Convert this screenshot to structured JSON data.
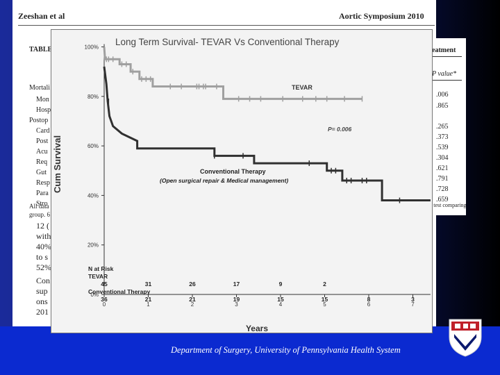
{
  "paper": {
    "author": "Zeeshan et al",
    "header_right": "Aortic Symposium 2010",
    "table_tag": "TABLE",
    "left_rows": [
      "Mortali",
      "Mon",
      "Hosp",
      "Postop",
      "Card",
      "Post",
      "Acu",
      "Req",
      "Gut",
      "Resp",
      "Para",
      "Stro"
    ],
    "body_lines": [
      "All data",
      "group. 6",
      "12 (",
      "with",
      "40%",
      "to s",
      "52%",
      "Con",
      "sup",
      "ons",
      "201"
    ],
    "treatment_label": "eatment",
    "pvalue_header": "P value*",
    "pvalues": [
      ".006",
      ".865",
      ".265",
      ".373",
      ".539",
      ".304",
      ".621",
      ".791",
      ".728",
      ".659"
    ],
    "footnote": "t test comparing"
  },
  "chart": {
    "title": "Long Term Survival- TEVAR Vs Conventional Therapy",
    "ylabel": "Cum Survival",
    "xlabel": "Years",
    "yticks": [
      "0%",
      "20%",
      "40%",
      "60%",
      "80%",
      "100%"
    ],
    "xticks": [
      "0",
      "1",
      "2",
      "3",
      "4",
      "5",
      "6",
      "7"
    ],
    "tevar_label": "TEVAR",
    "pvalue": "P= 0.006",
    "conv_label": "Conventional Therapy",
    "conv_sublabel": "(Open surgical repair & Medical management)",
    "risk_title": "N at Risk",
    "risk_tevar_label": "TEVAR",
    "risk_conv_label": "Conventional Therapy",
    "risk_tevar": [
      "45",
      "31",
      "26",
      "17",
      "9",
      "2"
    ],
    "risk_conv": [
      "36",
      "21",
      "21",
      "19",
      "15",
      "15",
      "8",
      "3"
    ]
  },
  "footer": {
    "text": "Department of Surgery, University of Pennsylvania Health System"
  },
  "colors": {
    "background": "#0a1a8c",
    "bottom_band": "#0b2ad0",
    "tevar_line": "#a0a0a0",
    "conv_line": "#303030",
    "chart_bg": "#f3f3f3",
    "logo_red": "#c0202a"
  },
  "chart_data": {
    "type": "line",
    "title": "Long Term Survival- TEVAR Vs Conventional Therapy",
    "xlabel": "Years",
    "ylabel": "Cum Survival",
    "xlim": [
      0,
      7.4
    ],
    "ylim": [
      0,
      100
    ],
    "x_ticks": [
      0,
      1,
      2,
      3,
      4,
      5,
      6,
      7
    ],
    "y_ticks": [
      0,
      20,
      40,
      60,
      80,
      100
    ],
    "grid": false,
    "series": [
      {
        "name": "TEVAR",
        "step_points": [
          [
            0,
            100
          ],
          [
            0.02,
            95
          ],
          [
            0.35,
            95
          ],
          [
            0.35,
            93
          ],
          [
            0.6,
            93
          ],
          [
            0.6,
            90
          ],
          [
            0.8,
            90
          ],
          [
            0.8,
            87
          ],
          [
            1.1,
            87
          ],
          [
            1.1,
            84
          ],
          [
            2.7,
            84
          ],
          [
            2.7,
            79
          ],
          [
            5.85,
            79
          ]
        ],
        "censor_x": [
          0.05,
          0.1,
          0.2,
          0.4,
          0.5,
          0.65,
          0.85,
          0.95,
          1.05,
          1.5,
          1.75,
          2.1,
          2.15,
          2.25,
          2.3,
          2.55,
          3.05,
          3.3,
          3.55,
          4.05,
          4.5,
          4.8,
          5.05,
          5.45,
          5.85
        ]
      },
      {
        "name": "Conventional Therapy",
        "step_points": [
          [
            0,
            92
          ],
          [
            0.05,
            85
          ],
          [
            0.08,
            78
          ],
          [
            0.12,
            72
          ],
          [
            0.2,
            68
          ],
          [
            0.4,
            65
          ],
          [
            0.75,
            62
          ],
          [
            0.75,
            59
          ],
          [
            2.5,
            59
          ],
          [
            2.5,
            56
          ],
          [
            3.4,
            56
          ],
          [
            3.4,
            53
          ],
          [
            5.05,
            53
          ],
          [
            5.05,
            50
          ],
          [
            5.4,
            50
          ],
          [
            5.4,
            46
          ],
          [
            6.3,
            46
          ],
          [
            6.3,
            38
          ],
          [
            7.4,
            38
          ]
        ],
        "censor_x": [
          0.1,
          2.5,
          3.15,
          4.65,
          5.15,
          5.25,
          5.5,
          5.6,
          5.85,
          5.95,
          6.7
        ]
      }
    ],
    "annotations": [
      "TEVAR",
      "P= 0.006",
      "Conventional Therapy",
      "(Open surgical repair & Medical management)"
    ],
    "at_risk": {
      "title": "N at Risk",
      "TEVAR": [
        45,
        31,
        26,
        17,
        9,
        2
      ],
      "Conventional Therapy": [
        36,
        21,
        21,
        19,
        15,
        15,
        8,
        3
      ]
    }
  }
}
